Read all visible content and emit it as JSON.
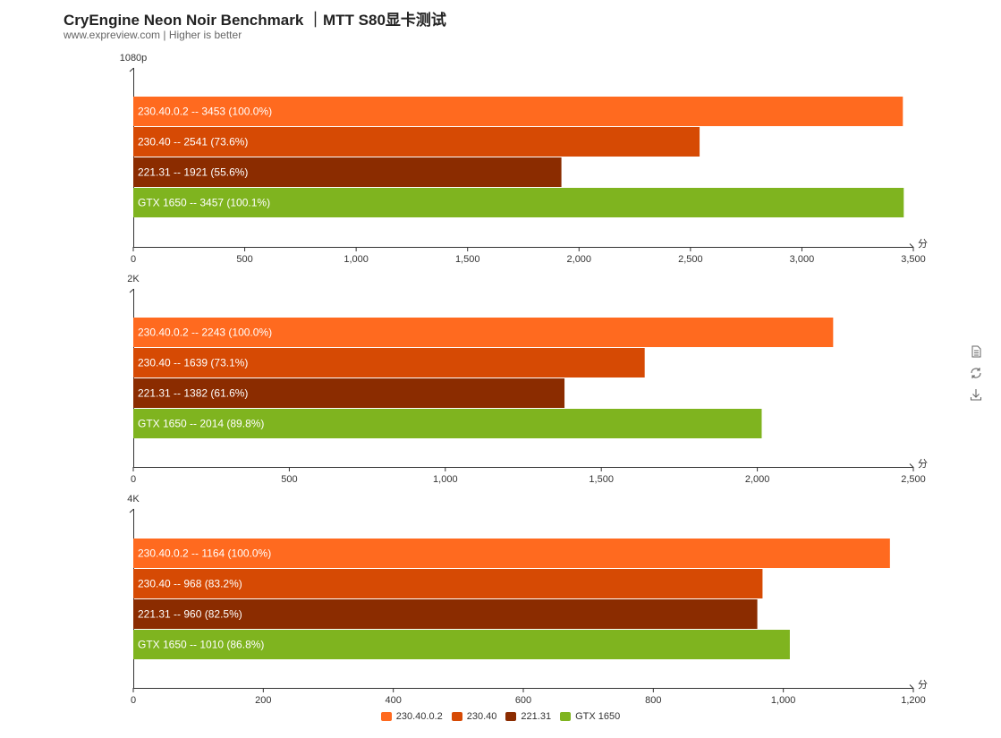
{
  "header": {
    "title": "CryEngine Neon Noir Benchmark ｜MTT S80显卡测试",
    "subtitle": "www.expreview.com | Higher is better"
  },
  "toolbox": {
    "icons": [
      "data-view-icon",
      "restore-icon",
      "save-image-icon"
    ]
  },
  "colors": {
    "230.40.0.2": "#ff6a1f",
    "230.40": "#d64a04",
    "221.31": "#8b2c00",
    "GTX 1650": "#7fb41f"
  },
  "legend": [
    "230.40.0.2",
    "230.40",
    "221.31",
    "GTX 1650"
  ],
  "chart_data": [
    {
      "type": "bar",
      "orientation": "horizontal",
      "title": "1080p",
      "xlabel": "分",
      "xlim": [
        0,
        3500
      ],
      "ticks": [
        "0",
        "500",
        "1,000",
        "1,500",
        "2,000",
        "2,500",
        "3,000",
        "3,500"
      ],
      "tick_values": [
        0,
        500,
        1000,
        1500,
        2000,
        2500,
        3000,
        3500
      ],
      "bars": [
        {
          "series": "230.40.0.2",
          "value": 3453,
          "label": "230.40.0.2  --  3453 (100.0%)"
        },
        {
          "series": "230.40",
          "value": 2541,
          "label": "230.40  --  2541 (73.6%)"
        },
        {
          "series": "221.31",
          "value": 1921,
          "label": "221.31  --  1921 (55.6%)"
        },
        {
          "series": "GTX 1650",
          "value": 3457,
          "label": "GTX 1650  --  3457 (100.1%)"
        }
      ]
    },
    {
      "type": "bar",
      "orientation": "horizontal",
      "title": "2K",
      "xlabel": "分",
      "xlim": [
        0,
        2500
      ],
      "ticks": [
        "0",
        "500",
        "1,000",
        "1,500",
        "2,000",
        "2,500"
      ],
      "tick_values": [
        0,
        500,
        1000,
        1500,
        2000,
        2500
      ],
      "bars": [
        {
          "series": "230.40.0.2",
          "value": 2243,
          "label": "230.40.0.2  --  2243 (100.0%)"
        },
        {
          "series": "230.40",
          "value": 1639,
          "label": "230.40  --  1639 (73.1%)"
        },
        {
          "series": "221.31",
          "value": 1382,
          "label": "221.31  --  1382 (61.6%)"
        },
        {
          "series": "GTX 1650",
          "value": 2014,
          "label": "GTX 1650  --  2014 (89.8%)"
        }
      ]
    },
    {
      "type": "bar",
      "orientation": "horizontal",
      "title": "4K",
      "xlabel": "分",
      "xlim": [
        0,
        1200
      ],
      "ticks": [
        "0",
        "200",
        "400",
        "600",
        "800",
        "1,000",
        "1,200"
      ],
      "tick_values": [
        0,
        200,
        400,
        600,
        800,
        1000,
        1200
      ],
      "bars": [
        {
          "series": "230.40.0.2",
          "value": 1164,
          "label": "230.40.0.2  --  1164 (100.0%)"
        },
        {
          "series": "230.40",
          "value": 968,
          "label": "230.40  --  968 (83.2%)"
        },
        {
          "series": "221.31",
          "value": 960,
          "label": "221.31  --  960 (82.5%)"
        },
        {
          "series": "GTX 1650",
          "value": 1010,
          "label": "GTX 1650  --  1010 (86.8%)"
        }
      ]
    }
  ]
}
